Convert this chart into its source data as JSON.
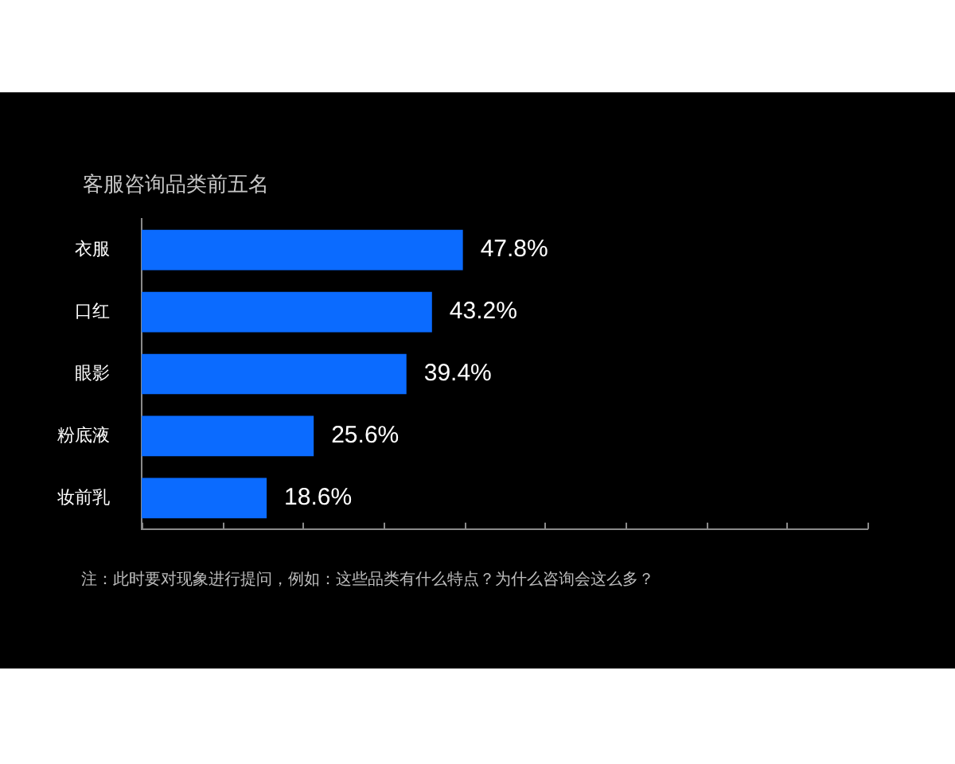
{
  "chart_data": {
    "type": "bar",
    "orientation": "horizontal",
    "title": "客服咨询品类前五名",
    "categories": [
      "衣服",
      "口红",
      "眼影",
      "粉底液",
      "妆前乳"
    ],
    "values": [
      47.8,
      43.2,
      39.4,
      25.6,
      18.6
    ],
    "color": "#0b6bff",
    "value_labels": [
      "47.8%",
      "43.2%",
      "39.4%",
      "25.6%",
      "18.6%"
    ],
    "xlim": [
      0,
      108
    ],
    "xticks": [
      {
        "value": 0,
        "label": null
      },
      {
        "value": 12,
        "label": null
      },
      {
        "value": 24,
        "label": null
      },
      {
        "value": 36,
        "label": null
      },
      {
        "value": 48,
        "label": null
      },
      {
        "value": 60,
        "label": null
      },
      {
        "value": 72,
        "label": null
      },
      {
        "value": 84,
        "label": null
      },
      {
        "value": 96,
        "label": null
      },
      {
        "value": 108,
        "label": null
      }
    ],
    "tick_labels": "y",
    "grid": false,
    "legend": false,
    "annotations": [
      "注：此时要对现象进行提问，例如：这些品类有什么特点？为什么咨询会这么多？"
    ]
  }
}
